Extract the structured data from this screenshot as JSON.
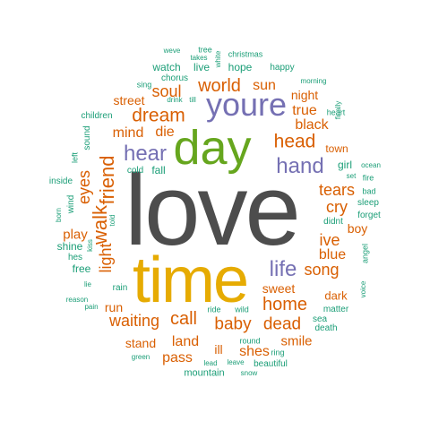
{
  "palette": {
    "big_word_gray": "#4d4d4d",
    "orange": "#d95f02",
    "green_small": "#1b9e77",
    "purple": "#7570b3",
    "green_large": "#66a61e",
    "gold": "#e6ab02"
  },
  "words": [
    {
      "text": "love",
      "color": "c0"
    },
    {
      "text": "time",
      "color": "c5"
    },
    {
      "text": "day",
      "color": "c4"
    },
    {
      "text": "youre",
      "color": "c3"
    },
    {
      "text": "hand",
      "color": "c3"
    },
    {
      "text": "hear",
      "color": "c3"
    },
    {
      "text": "life",
      "color": "c3"
    },
    {
      "text": "friend",
      "color": "c1"
    },
    {
      "text": "walk",
      "color": "c1"
    },
    {
      "text": "light",
      "color": "c1"
    },
    {
      "text": "eyes",
      "color": "c1"
    },
    {
      "text": "dream",
      "color": "c1"
    },
    {
      "text": "world",
      "color": "c1"
    },
    {
      "text": "soul",
      "color": "c1"
    },
    {
      "text": "mind",
      "color": "c1"
    },
    {
      "text": "die",
      "color": "c1"
    },
    {
      "text": "head",
      "color": "c1"
    },
    {
      "text": "true",
      "color": "c1"
    },
    {
      "text": "black",
      "color": "c1"
    },
    {
      "text": "sun",
      "color": "c1"
    },
    {
      "text": "night",
      "color": "c1"
    },
    {
      "text": "street",
      "color": "c1"
    },
    {
      "text": "tears",
      "color": "c1"
    },
    {
      "text": "cry",
      "color": "c1"
    },
    {
      "text": "ive",
      "color": "c1"
    },
    {
      "text": "blue",
      "color": "c1"
    },
    {
      "text": "song",
      "color": "c1"
    },
    {
      "text": "home",
      "color": "c1"
    },
    {
      "text": "sweet",
      "color": "c1"
    },
    {
      "text": "call",
      "color": "c1"
    },
    {
      "text": "waiting",
      "color": "c1"
    },
    {
      "text": "baby",
      "color": "c1"
    },
    {
      "text": "dead",
      "color": "c1"
    },
    {
      "text": "land",
      "color": "c1"
    },
    {
      "text": "stand",
      "color": "c1"
    },
    {
      "text": "pass",
      "color": "c1"
    },
    {
      "text": "smile",
      "color": "c1"
    },
    {
      "text": "shes",
      "color": "c1"
    },
    {
      "text": "ill",
      "color": "c1"
    },
    {
      "text": "play",
      "color": "c1"
    },
    {
      "text": "run",
      "color": "c1"
    },
    {
      "text": "boy",
      "color": "c1"
    },
    {
      "text": "dark",
      "color": "c1"
    },
    {
      "text": "town",
      "color": "c1"
    },
    {
      "text": "hope",
      "color": "c2"
    },
    {
      "text": "watch",
      "color": "c2"
    },
    {
      "text": "live",
      "color": "c2"
    },
    {
      "text": "happy",
      "color": "c2"
    },
    {
      "text": "christmas",
      "color": "c2"
    },
    {
      "text": "tree",
      "color": "c2"
    },
    {
      "text": "weve",
      "color": "c2"
    },
    {
      "text": "takes",
      "color": "c2"
    },
    {
      "text": "white",
      "color": "c2"
    },
    {
      "text": "chorus",
      "color": "c2"
    },
    {
      "text": "sing",
      "color": "c2"
    },
    {
      "text": "drink",
      "color": "c2"
    },
    {
      "text": "till",
      "color": "c2"
    },
    {
      "text": "morning",
      "color": "c2"
    },
    {
      "text": "heart",
      "color": "c2"
    },
    {
      "text": "finally",
      "color": "c2"
    },
    {
      "text": "children",
      "color": "c2"
    },
    {
      "text": "sound",
      "color": "c2"
    },
    {
      "text": "cold",
      "color": "c2"
    },
    {
      "text": "fall",
      "color": "c2"
    },
    {
      "text": "girl",
      "color": "c2"
    },
    {
      "text": "ocean",
      "color": "c2"
    },
    {
      "text": "set",
      "color": "c2"
    },
    {
      "text": "fire",
      "color": "c2"
    },
    {
      "text": "bad",
      "color": "c2"
    },
    {
      "text": "sleep",
      "color": "c2"
    },
    {
      "text": "forget",
      "color": "c2"
    },
    {
      "text": "didnt",
      "color": "c2"
    },
    {
      "text": "inside",
      "color": "c2"
    },
    {
      "text": "left",
      "color": "c2"
    },
    {
      "text": "wind",
      "color": "c2"
    },
    {
      "text": "born",
      "color": "c2"
    },
    {
      "text": "shine",
      "color": "c2"
    },
    {
      "text": "kiss",
      "color": "c2"
    },
    {
      "text": "hes",
      "color": "c2"
    },
    {
      "text": "told",
      "color": "c2"
    },
    {
      "text": "free",
      "color": "c2"
    },
    {
      "text": "lie",
      "color": "c2"
    },
    {
      "text": "rain",
      "color": "c2"
    },
    {
      "text": "reason",
      "color": "c2"
    },
    {
      "text": "pain",
      "color": "c2"
    },
    {
      "text": "angel",
      "color": "c2"
    },
    {
      "text": "voice",
      "color": "c2"
    },
    {
      "text": "matter",
      "color": "c2"
    },
    {
      "text": "sea",
      "color": "c2"
    },
    {
      "text": "death",
      "color": "c2"
    },
    {
      "text": "ride",
      "color": "c2"
    },
    {
      "text": "wild",
      "color": "c2"
    },
    {
      "text": "round",
      "color": "c2"
    },
    {
      "text": "ring",
      "color": "c2"
    },
    {
      "text": "green",
      "color": "c2"
    },
    {
      "text": "lead",
      "color": "c2"
    },
    {
      "text": "leave",
      "color": "c2"
    },
    {
      "text": "beautiful",
      "color": "c2"
    },
    {
      "text": "snow",
      "color": "c2"
    },
    {
      "text": "mountain",
      "color": "c2"
    }
  ]
}
